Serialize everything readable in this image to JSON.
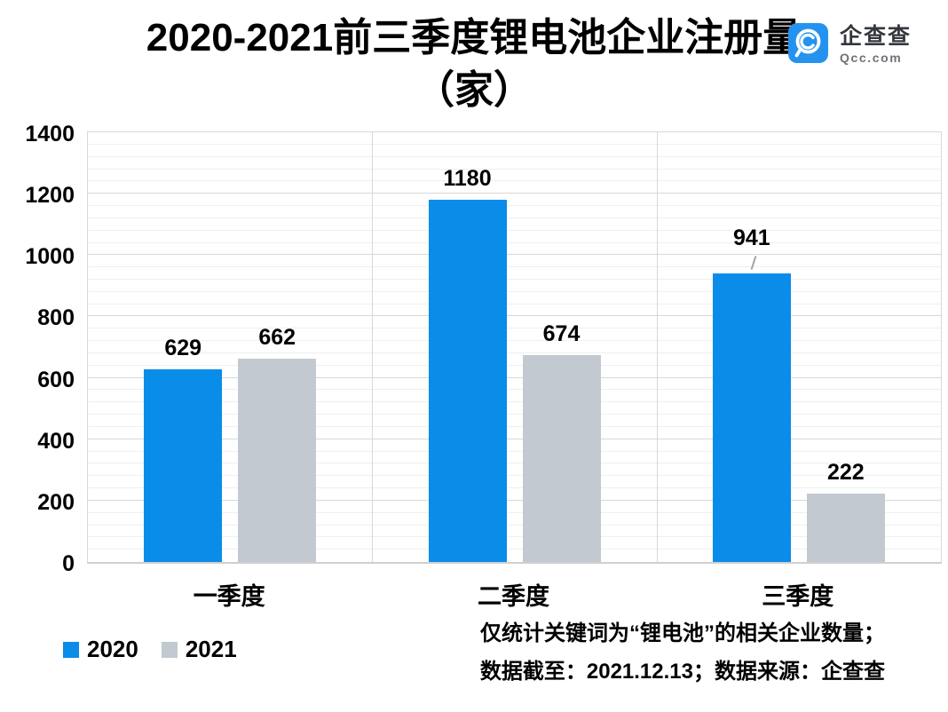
{
  "header": {
    "title_line1": "2020-2021前三季度锂电池企业注册量",
    "title_line2": "（家）",
    "brand_name": "企查查",
    "brand_domain": "Qcc.com",
    "brand_color": "#2493ef"
  },
  "chart_data": {
    "type": "bar",
    "title": "2020-2021前三季度锂电池企业注册量（家）",
    "categories": [
      "一季度",
      "二季度",
      "三季度"
    ],
    "series": [
      {
        "name": "2020",
        "color": "#0a8ce9",
        "values": [
          629,
          1180,
          941
        ]
      },
      {
        "name": "2021",
        "color": "#c2c9d1",
        "values": [
          662,
          674,
          222
        ]
      }
    ],
    "xlabel": "",
    "ylabel": "",
    "ylim": [
      0,
      1400
    ],
    "y_major_unit": 200,
    "y_minor_unit": 40,
    "y_tick_labels": [
      "0",
      "200",
      "400",
      "600",
      "800",
      "1000",
      "1200",
      "1400"
    ],
    "grid": true,
    "data_labels": true,
    "legend_position": "bottom-left",
    "label_leader_lines": [
      {
        "series_index": 0,
        "category_index": 2
      }
    ]
  },
  "footnote": {
    "line1": "仅统计关键词为“锂电池”的相关企业数量；",
    "line2": "数据截至：2021.12.13；数据来源：企查查"
  },
  "colors": {
    "grid_minor": "#efefef",
    "grid_major": "#d8d8d8",
    "axis_line": "#cfcfcf",
    "leader_line": "#a3a3a3",
    "text": "#000000"
  }
}
